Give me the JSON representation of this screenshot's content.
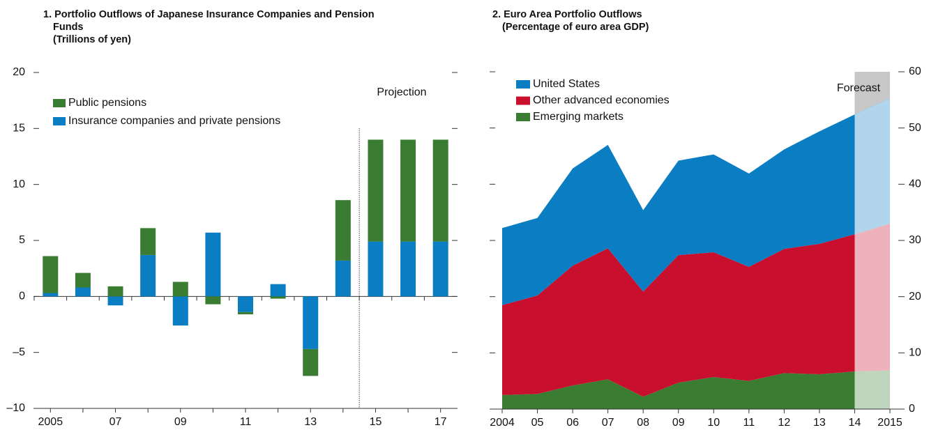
{
  "chart_data": [
    {
      "type": "bar",
      "stacked": true,
      "title": "1. Portfolio Outflows of Japanese Insurance Companies and Pension Funds",
      "subtitle": "(Trillions of yen)",
      "categories": [
        "2005",
        null,
        "07",
        null,
        "09",
        null,
        "11",
        null,
        "13",
        null,
        "15",
        null,
        "17"
      ],
      "series": [
        {
          "name": "Insurance companies and private pensions",
          "color": "#0b7dc3",
          "values": [
            0.3,
            0.8,
            -0.8,
            3.7,
            -2.6,
            5.7,
            -1.4,
            1.1,
            -4.7,
            3.2,
            4.9,
            4.9,
            4.9
          ]
        },
        {
          "name": "Public pensions",
          "color": "#3a7d32",
          "values": [
            3.3,
            1.3,
            0.9,
            2.4,
            1.3,
            -0.7,
            -0.2,
            -0.2,
            -2.4,
            5.4,
            9.1,
            9.1,
            9.1
          ]
        }
      ],
      "legend_order": [
        1,
        0
      ],
      "ylim": [
        -10,
        20
      ],
      "yticks": [
        {
          "value": -10,
          "label": "–10"
        },
        {
          "value": -5,
          "label": "–5"
        },
        0,
        5,
        10,
        15,
        20
      ],
      "annotation": "Projection"
    },
    {
      "type": "area",
      "stacked": true,
      "title": "2. Euro Area Portfolio Outflows",
      "subtitle": "(Percentage of euro area GDP)",
      "categories": [
        "2004",
        "05",
        "06",
        "07",
        "08",
        "09",
        "10",
        "11",
        "12",
        "13",
        "14",
        "2015"
      ],
      "series": [
        {
          "name": "Emerging markets",
          "color": "#3a7d32",
          "values": [
            2.5,
            2.7,
            4.2,
            5.3,
            2.2,
            4.7,
            5.7,
            5.0,
            6.4,
            6.2,
            6.7,
            6.9
          ]
        },
        {
          "name": "Other advanced economies",
          "color": "#c8102e",
          "values": [
            16.0,
            17.5,
            21.3,
            23.3,
            18.7,
            22.7,
            22.2,
            20.3,
            22.1,
            23.2,
            24.4,
            26.1
          ]
        },
        {
          "name": "United States",
          "color": "#0b7dc3",
          "values": [
            13.7,
            13.8,
            17.3,
            18.4,
            14.5,
            16.8,
            17.4,
            16.6,
            17.7,
            20.0,
            21.3,
            22.3
          ]
        }
      ],
      "legend_order": [
        2,
        1,
        0
      ],
      "ylim": [
        0,
        60
      ],
      "yticks": [
        0,
        10,
        20,
        30,
        40,
        50,
        60
      ],
      "annotation": "Forecast"
    }
  ]
}
